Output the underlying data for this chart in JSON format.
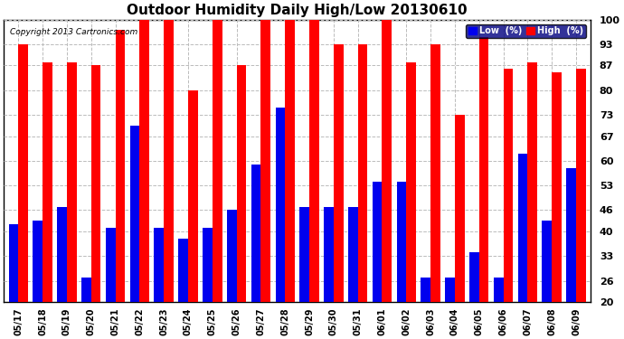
{
  "title": "Outdoor Humidity Daily High/Low 20130610",
  "copyright": "Copyright 2013 Cartronics.com",
  "dates": [
    "05/17",
    "05/18",
    "05/19",
    "05/20",
    "05/21",
    "05/22",
    "05/23",
    "05/24",
    "05/25",
    "05/26",
    "05/27",
    "05/28",
    "05/29",
    "05/30",
    "05/31",
    "06/01",
    "06/02",
    "06/03",
    "06/04",
    "06/05",
    "06/06",
    "06/07",
    "06/08",
    "06/09"
  ],
  "high": [
    93,
    88,
    88,
    87,
    97,
    100,
    100,
    80,
    100,
    87,
    100,
    100,
    100,
    93,
    93,
    100,
    88,
    93,
    73,
    95,
    86,
    88,
    85,
    86
  ],
  "low": [
    42,
    43,
    47,
    27,
    41,
    70,
    41,
    38,
    41,
    46,
    59,
    75,
    47,
    47,
    47,
    54,
    54,
    27,
    27,
    34,
    27,
    62,
    43,
    58
  ],
  "high_color": "#ff0000",
  "low_color": "#0000ee",
  "bg_color": "#ffffff",
  "grid_color": "#bbbbbb",
  "ylim_min": 20,
  "ylim_max": 100,
  "yticks": [
    20,
    26,
    33,
    40,
    46,
    53,
    60,
    67,
    73,
    80,
    87,
    93,
    100
  ],
  "bar_width": 0.4,
  "legend_low": "Low  (%)",
  "legend_high": "High  (%)",
  "figwidth": 6.9,
  "figheight": 3.75,
  "dpi": 100
}
